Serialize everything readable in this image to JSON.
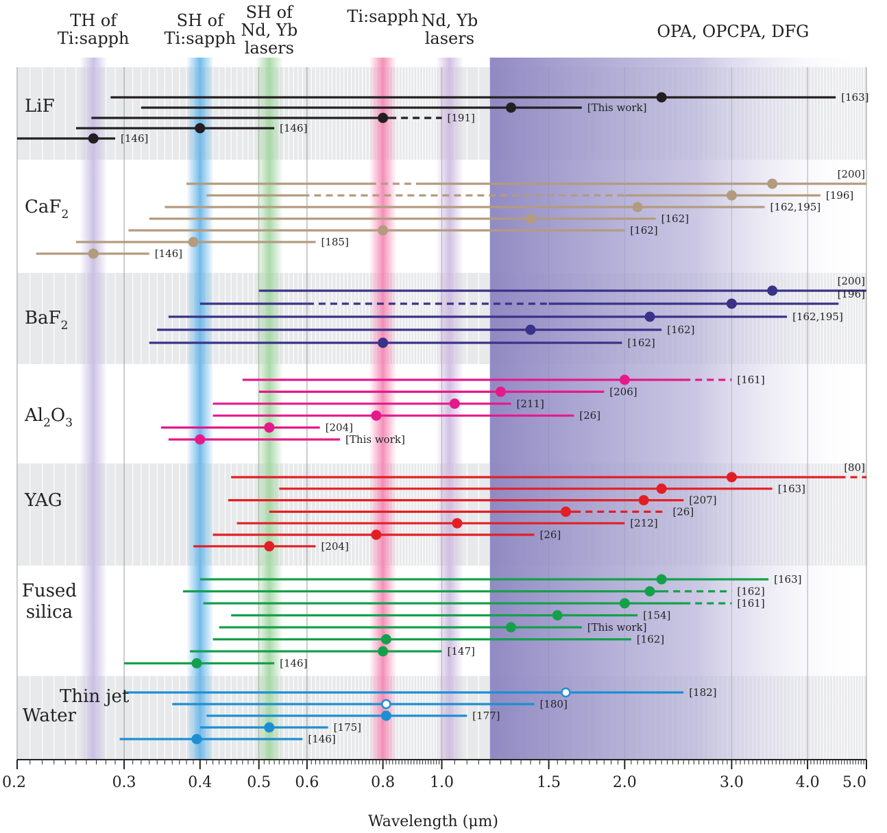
{
  "chart_data": {
    "type": "range",
    "xlabel": "Wavelength (μm)",
    "xscale": "log",
    "xlim": [
      0.2,
      5.0
    ],
    "xticks": [
      0.2,
      0.3,
      0.4,
      0.5,
      0.6,
      0.8,
      1.0,
      1.5,
      2.0,
      3.0,
      4.0,
      5.0
    ],
    "xtick_labels": [
      "0.2",
      "0.3",
      "0.4",
      "0.5",
      "0.6",
      "0.8",
      "1.0",
      "1.5",
      "2.0",
      "3.0",
      "4.0",
      "5.0"
    ],
    "colors": {
      "LiF": "#231f20",
      "CaF2": "#b39b7f",
      "BaF2": "#3a3189",
      "Al2O3": "#e5198a",
      "YAG": "#e31e24",
      "Fused silica": "#14a04b",
      "Water": "#1b8fd2"
    },
    "bands": [
      {
        "label": [
          "TH of",
          "Ti:sapph"
        ],
        "center": 0.267,
        "color": "#c8bfe4"
      },
      {
        "label": [
          "SH of",
          "Ti:sapph"
        ],
        "center": 0.4,
        "color": "#6cb8ea"
      },
      {
        "label": [
          "SH of",
          "Nd, Yb",
          "lasers"
        ],
        "center": 0.52,
        "color": "#a6d7a5"
      },
      {
        "label": [
          "Ti:sapph"
        ],
        "center": 0.8,
        "color": "#f58bb5"
      },
      {
        "label": [
          "Nd, Yb",
          "lasers"
        ],
        "center": 1.03,
        "color": "#cfbde0"
      },
      {
        "label": [
          "OPA, OPCPA, DFG"
        ],
        "from": 1.2,
        "to": 5.0,
        "color": "#8b84c0"
      }
    ],
    "groups": [
      {
        "material": "LiF",
        "label_main": "LiF",
        "label_sub": "",
        "label_main2": "",
        "label_sub2": "",
        "label_lines": [],
        "series": [
          {
            "ref": "[163]",
            "pump": 2.3,
            "from": 0.285,
            "to": 4.45,
            "dashed": []
          },
          {
            "ref": "[This work]",
            "pump": 1.3,
            "from": 0.32,
            "to": 1.7,
            "dashed": []
          },
          {
            "ref": "[191]",
            "pump": 0.8,
            "from": 0.265,
            "to": 1.0,
            "dashed": [
              [
                0.82,
                1.0
              ]
            ]
          },
          {
            "ref": "[146]",
            "pump": 0.4,
            "from": 0.25,
            "to": 0.53,
            "dashed": []
          },
          {
            "ref": "[146]",
            "pump": 0.267,
            "from": 0.2,
            "to": 0.29,
            "dashed": []
          }
        ]
      },
      {
        "material": "CaF2",
        "label_main": "CaF",
        "label_sub": "2",
        "label_main2": "",
        "label_sub2": "",
        "label_lines": [],
        "series": [
          {
            "ref": "[200]",
            "pump": 3.5,
            "from": 0.38,
            "to": 5.0,
            "dashed": [
              [
                0.76,
                0.92
              ]
            ]
          },
          {
            "ref": "[196]",
            "pump": 3.0,
            "from": 0.41,
            "to": 4.2,
            "dashed": [
              [
                0.59,
                2.0
              ]
            ]
          },
          {
            "ref": "[162,195]",
            "pump": 2.1,
            "from": 0.35,
            "to": 3.4,
            "dashed": []
          },
          {
            "ref": "[162]",
            "pump": 1.4,
            "from": 0.33,
            "to": 2.25,
            "dashed": []
          },
          {
            "ref": "[162]",
            "pump": 0.8,
            "from": 0.305,
            "to": 2.0,
            "dashed": []
          },
          {
            "ref": "[185]",
            "pump": 0.39,
            "from": 0.25,
            "to": 0.62,
            "dashed": []
          },
          {
            "ref": "[146]",
            "pump": 0.267,
            "from": 0.215,
            "to": 0.33,
            "dashed": []
          }
        ]
      },
      {
        "material": "BaF2",
        "label_main": "BaF",
        "label_sub": "2",
        "label_main2": "",
        "label_sub2": "",
        "label_lines": [],
        "series": [
          {
            "ref": "[200]",
            "pump": 3.5,
            "from": 0.5,
            "to": 5.0,
            "dashed": []
          },
          {
            "ref": "[196]",
            "pump": 3.0,
            "from": 0.4,
            "to": 4.5,
            "dashed": [
              [
                0.6,
                1.5
              ]
            ]
          },
          {
            "ref": "[162,195]",
            "pump": 2.2,
            "from": 0.355,
            "to": 3.7,
            "dashed": []
          },
          {
            "ref": "[162]",
            "pump": 1.4,
            "from": 0.34,
            "to": 2.3,
            "dashed": []
          },
          {
            "ref": "[162]",
            "pump": 0.8,
            "from": 0.33,
            "to": 1.98,
            "dashed": []
          }
        ]
      },
      {
        "material": "Al2O3",
        "label_main": "Al",
        "label_sub": "2",
        "label_main2": "O",
        "label_sub2": "3",
        "label_lines": [],
        "series": [
          {
            "ref": "[161]",
            "pump": 2.0,
            "from": 0.47,
            "to": 3.0,
            "dashed": [
              [
                2.5,
                3.0
              ]
            ]
          },
          {
            "ref": "[206]",
            "pump": 1.25,
            "from": 0.5,
            "to": 1.85,
            "dashed": []
          },
          {
            "ref": "[211]",
            "pump": 1.05,
            "from": 0.42,
            "to": 1.3,
            "dashed": []
          },
          {
            "ref": "[26]",
            "pump": 0.78,
            "from": 0.42,
            "to": 1.65,
            "dashed": []
          },
          {
            "ref": "[204]",
            "pump": 0.52,
            "from": 0.345,
            "to": 0.63,
            "dashed": []
          },
          {
            "ref": "[This work]",
            "pump": 0.4,
            "from": 0.355,
            "to": 0.68,
            "dashed": []
          }
        ]
      },
      {
        "material": "YAG",
        "label_main": "YAG",
        "label_sub": "",
        "label_main2": "",
        "label_sub2": "",
        "label_lines": [],
        "series": [
          {
            "ref": "[80]",
            "pump": 3.0,
            "from": 0.45,
            "to": 5.0,
            "dashed": [
              [
                4.5,
                5.0
              ]
            ]
          },
          {
            "ref": "[163]",
            "pump": 2.3,
            "from": 0.54,
            "to": 3.5,
            "dashed": []
          },
          {
            "ref": "[207]",
            "pump": 2.15,
            "from": 0.445,
            "to": 2.5,
            "dashed": []
          },
          {
            "ref": "[26]",
            "pump": 1.6,
            "from": 0.52,
            "to": 2.35,
            "dashed": [
              [
                1.65,
                2.35
              ]
            ]
          },
          {
            "ref": "[212]",
            "pump": 1.06,
            "from": 0.46,
            "to": 2.0,
            "dashed": []
          },
          {
            "ref": "[26]",
            "pump": 0.78,
            "from": 0.42,
            "to": 1.42,
            "dashed": []
          },
          {
            "ref": "[204]",
            "pump": 0.52,
            "from": 0.39,
            "to": 0.62,
            "dashed": []
          }
        ]
      },
      {
        "material": "Fused silica",
        "label_main": "",
        "label_sub": "",
        "label_main2": "",
        "label_sub2": "",
        "label_lines": [
          "Fused",
          "silica"
        ],
        "series": [
          {
            "ref": "[163]",
            "pump": 2.3,
            "from": 0.4,
            "to": 3.45,
            "dashed": []
          },
          {
            "ref": "[162]",
            "pump": 2.2,
            "from": 0.375,
            "to": 3.0,
            "dashed": [
              [
                2.3,
                3.0
              ]
            ]
          },
          {
            "ref": "[161]",
            "pump": 2.0,
            "from": 0.405,
            "to": 3.0,
            "dashed": [
              [
                2.5,
                3.0
              ]
            ]
          },
          {
            "ref": "[154]",
            "pump": 1.55,
            "from": 0.45,
            "to": 2.1,
            "dashed": []
          },
          {
            "ref": "[This work]",
            "pump": 1.3,
            "from": 0.43,
            "to": 1.7,
            "dashed": []
          },
          {
            "ref": "[162]",
            "pump": 0.81,
            "from": 0.42,
            "to": 2.05,
            "dashed": []
          },
          {
            "ref": "[147]",
            "pump": 0.8,
            "from": 0.385,
            "to": 1.0,
            "dashed": []
          },
          {
            "ref": "[146]",
            "pump": 0.395,
            "from": 0.3,
            "to": 0.53,
            "dashed": []
          }
        ]
      },
      {
        "material": "Water",
        "label_main": "",
        "label_sub": "",
        "label_main2": "",
        "label_sub2": "",
        "label_lines": [
          "Water"
        ],
        "series": [
          {
            "ref": "[182]",
            "pump": 1.6,
            "from": 0.3,
            "to": 2.5,
            "dashed": [],
            "open": true
          },
          {
            "ref": "[180]",
            "pump": 0.81,
            "from": 0.36,
            "to": 1.42,
            "dashed": [],
            "open": true
          },
          {
            "ref": "[177]",
            "pump": 0.81,
            "from": 0.41,
            "to": 1.1,
            "dashed": []
          },
          {
            "ref": "[175]",
            "pump": 0.52,
            "from": 0.4,
            "to": 0.65,
            "dashed": []
          },
          {
            "ref": "[146]",
            "pump": 0.395,
            "from": 0.295,
            "to": 0.59,
            "dashed": []
          }
        ]
      }
    ],
    "annotations": [
      "Thin jet"
    ]
  }
}
